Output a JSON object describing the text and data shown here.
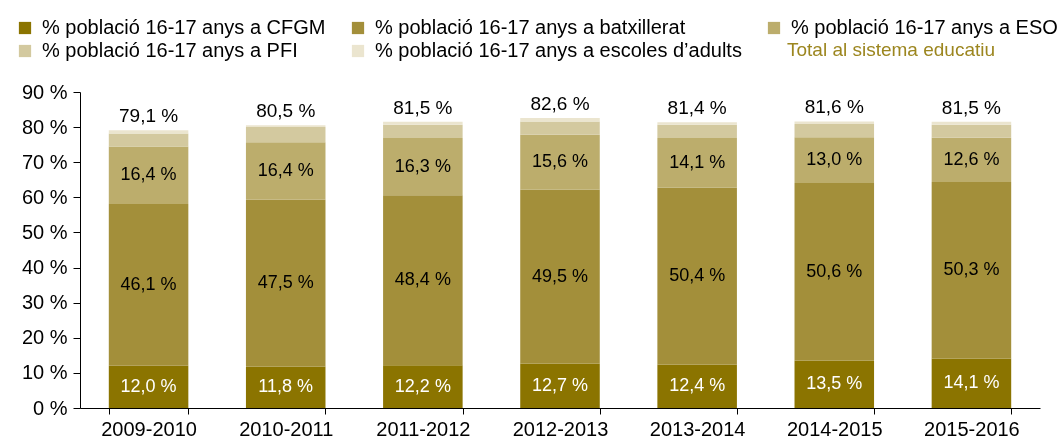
{
  "chart_data": {
    "type": "bar",
    "stacked": true,
    "categories": [
      "2009-2010",
      "2010-2011",
      "2011-2012",
      "2012-2013",
      "2013-2014",
      "2014-2015",
      "2015-2016"
    ],
    "series": [
      {
        "name": "% població 16-17 anys a CFGM",
        "color": "#8b7400",
        "values": [
          12.0,
          11.8,
          12.2,
          12.7,
          12.4,
          13.5,
          14.1
        ],
        "value_labels": [
          "12,0 %",
          "11,8 %",
          "12,2 %",
          "12,7 %",
          "12,4 %",
          "13,5 %",
          "14,1 %"
        ]
      },
      {
        "name": "% població 16-17 anys a batxillerat",
        "color": "#a38f3a",
        "values": [
          46.1,
          47.5,
          48.4,
          49.5,
          50.4,
          50.6,
          50.3
        ],
        "value_labels": [
          "46,1 %",
          "47,5 %",
          "48,4 %",
          "49,5 %",
          "50,4 %",
          "50,6 %",
          "50,3 %"
        ]
      },
      {
        "name": "% població 16-17 anys a ESO",
        "color": "#bcad6c",
        "values": [
          16.4,
          16.4,
          16.3,
          15.6,
          14.1,
          13.0,
          12.6
        ],
        "value_labels": [
          "16,4 %",
          "16,4 %",
          "16,3 %",
          "15,6 %",
          "14,1 %",
          "13,0 %",
          "12,6 %"
        ]
      },
      {
        "name": "% població 16-17 anys a PFI",
        "color": "#d3c99f",
        "values": [
          3.7,
          4.3,
          3.8,
          3.8,
          3.8,
          3.8,
          3.7
        ]
      },
      {
        "name": "% població 16-17 anys a escoles d’adults",
        "color": "#ebe5cf",
        "values": [
          0.9,
          0.5,
          0.8,
          1.0,
          0.7,
          0.7,
          0.8
        ]
      }
    ],
    "totals": [
      "79,1 %",
      "80,5 %",
      "81,5 %",
      "82,6 %",
      "81,4 %",
      "81,6 %",
      "81,5 %"
    ],
    "ylim": [
      0,
      90
    ],
    "yticks": [
      {
        "value": 0,
        "label": "0 %"
      },
      {
        "value": 10,
        "label": "10 %"
      },
      {
        "value": 20,
        "label": "20 %"
      },
      {
        "value": 30,
        "label": "30 %"
      },
      {
        "value": 40,
        "label": "40 %"
      },
      {
        "value": 50,
        "label": "50 %"
      },
      {
        "value": 60,
        "label": "60 %"
      },
      {
        "value": 70,
        "label": "70 %"
      },
      {
        "value": 80,
        "label": "80 %"
      },
      {
        "value": 90,
        "label": "90 %"
      }
    ],
    "legend": "top",
    "annotations": [
      "Total al sistema educatiu"
    ]
  }
}
